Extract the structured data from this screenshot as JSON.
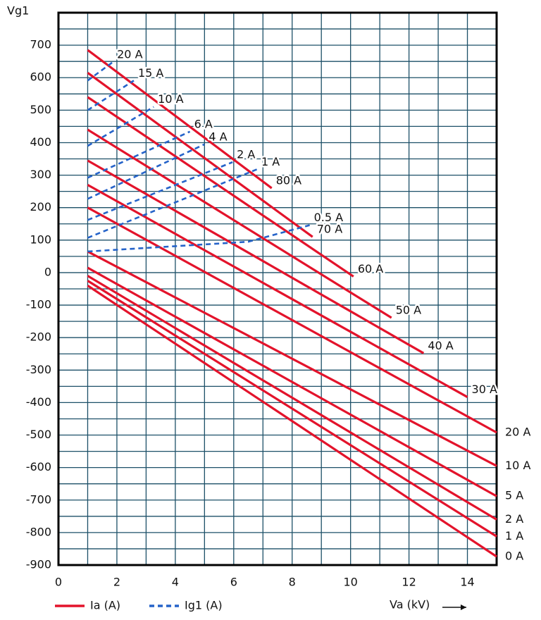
{
  "chart_data": {
    "type": "line",
    "y_label": "Vg1",
    "x_label": "Va (kV)",
    "xlim": [
      0,
      15
    ],
    "ylim": [
      -900,
      800
    ],
    "xticks": [
      0,
      2,
      4,
      6,
      8,
      10,
      12,
      14
    ],
    "yticks": [
      -900,
      -800,
      -700,
      -600,
      -500,
      -400,
      -300,
      -200,
      -100,
      0,
      100,
      200,
      300,
      400,
      500,
      600,
      700
    ],
    "xgrid": [
      0,
      1,
      2,
      3,
      4,
      5,
      6,
      7,
      8,
      9,
      10,
      11,
      12,
      13,
      14,
      15
    ],
    "ygrid": [
      -900,
      -850,
      -800,
      -750,
      -700,
      -650,
      -600,
      -550,
      -500,
      -450,
      -400,
      -350,
      -300,
      -250,
      -200,
      -150,
      -100,
      -50,
      0,
      50,
      100,
      150,
      200,
      250,
      300,
      350,
      400,
      450,
      500,
      550,
      600,
      650,
      700,
      750,
      800
    ],
    "legend": [
      {
        "label": "Ia (A)",
        "color": "#e3132b",
        "dash": false
      },
      {
        "label": "Ig1 (A)",
        "color": "#2563c9",
        "dash": true
      }
    ],
    "series": [
      {
        "name": "80 A",
        "color": "#e3132b",
        "dash": false,
        "x": [
          1,
          7.3
        ],
        "values": [
          685,
          260
        ]
      },
      {
        "name": "70 A",
        "color": "#e3132b",
        "dash": false,
        "x": [
          1,
          8.7
        ],
        "values": [
          615,
          110
        ]
      },
      {
        "name": "60 A",
        "color": "#e3132b",
        "dash": false,
        "x": [
          1,
          10.1
        ],
        "values": [
          540,
          -12
        ]
      },
      {
        "name": "50 A",
        "color": "#e3132b",
        "dash": false,
        "x": [
          1,
          11.4
        ],
        "values": [
          440,
          -139
        ]
      },
      {
        "name": "40 A",
        "color": "#e3132b",
        "dash": false,
        "x": [
          1,
          12.5
        ],
        "values": [
          345,
          -248
        ]
      },
      {
        "name": "30 A",
        "color": "#e3132b",
        "dash": false,
        "x": [
          1,
          14
        ],
        "values": [
          270,
          -383
        ]
      },
      {
        "name": "20 A",
        "color": "#e3132b",
        "dash": false,
        "x": [
          1,
          15
        ],
        "values": [
          200,
          -492
        ]
      },
      {
        "name": "10 A",
        "color": "#e3132b",
        "dash": false,
        "x": [
          1,
          15
        ],
        "values": [
          65,
          -595
        ]
      },
      {
        "name": "5 A",
        "color": "#e3132b",
        "dash": false,
        "x": [
          1,
          15
        ],
        "values": [
          15,
          -688
        ]
      },
      {
        "name": "2 A",
        "color": "#e3132b",
        "dash": false,
        "x": [
          1,
          15
        ],
        "values": [
          -10,
          -760
        ]
      },
      {
        "name": "1 A",
        "color": "#e3132b",
        "dash": false,
        "x": [
          1,
          15
        ],
        "values": [
          -25,
          -812
        ]
      },
      {
        "name": "0 A",
        "color": "#e3132b",
        "dash": false,
        "x": [
          1,
          15
        ],
        "values": [
          -40,
          -874
        ]
      },
      {
        "name": "20 A",
        "color": "#2563c9",
        "dash": true,
        "x": [
          1,
          1.86
        ],
        "values": [
          591,
          648
        ]
      },
      {
        "name": "15 A",
        "color": "#2563c9",
        "dash": true,
        "x": [
          1,
          2.58
        ],
        "values": [
          500,
          591
        ]
      },
      {
        "name": "10 A",
        "color": "#2563c9",
        "dash": true,
        "x": [
          1,
          3.26
        ],
        "values": [
          390,
          510
        ]
      },
      {
        "name": "6 A",
        "color": "#2563c9",
        "dash": true,
        "x": [
          1,
          4.5
        ],
        "values": [
          292,
          434
        ]
      },
      {
        "name": "4 A",
        "color": "#2563c9",
        "dash": true,
        "x": [
          1,
          5
        ],
        "values": [
          227,
          395
        ]
      },
      {
        "name": "2 A",
        "color": "#2563c9",
        "dash": true,
        "x": [
          1,
          5.96
        ],
        "values": [
          162,
          340
        ]
      },
      {
        "name": "1 A",
        "color": "#2563c9",
        "dash": true,
        "x": [
          1,
          6.8
        ],
        "values": [
          107,
          318
        ]
      },
      {
        "name": "0.5 A",
        "color": "#2563c9",
        "dash": true,
        "x": [
          1,
          6.5,
          8.6
        ],
        "values": [
          65,
          95,
          146
        ]
      }
    ]
  }
}
